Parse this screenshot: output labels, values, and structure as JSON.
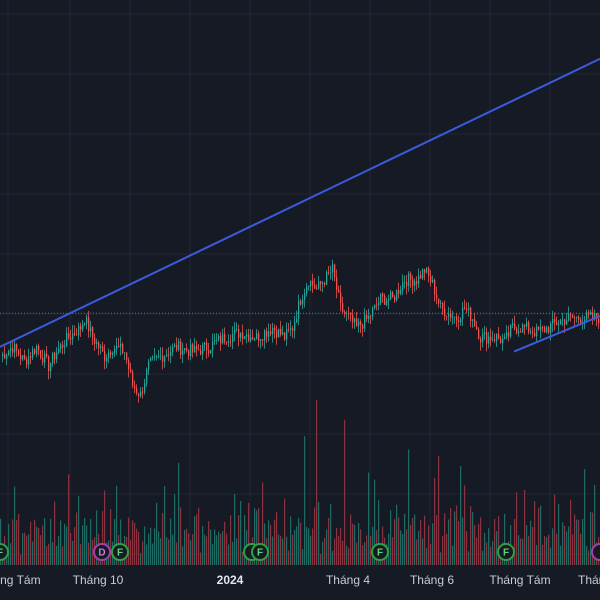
{
  "chart_data": {
    "type": "candlestick",
    "title": "",
    "xlabel": "",
    "ylabel": "",
    "grid": true,
    "colors": {
      "background": "#161a25",
      "grid": "#232734",
      "up": "#26a69a",
      "down": "#ef5350",
      "volume_up": "#1f6b64",
      "volume_down": "#8a3340",
      "trendline": "#3b5bdb",
      "reference_line": "#3d8a85",
      "dividend_marker": "#a33fa8",
      "earnings_marker": "#2ea043",
      "label": "#c9ccd4"
    },
    "x_tick_labels": [
      {
        "text": "Tháng Tám",
        "bold": false
      },
      {
        "text": "Tháng 10",
        "bold": false
      },
      {
        "text": "2024",
        "bold": true
      },
      {
        "text": "Tháng 4",
        "bold": false
      },
      {
        "text": "Tháng 6",
        "bold": false
      },
      {
        "text": "Tháng Tám",
        "bold": false
      },
      {
        "text": "Tháng",
        "bold": false
      }
    ],
    "price_range": [
      75,
      130
    ],
    "reference_level": 100.5,
    "anchor_closes": [
      [
        0,
        96
      ],
      [
        6,
        97
      ],
      [
        12,
        95.5
      ],
      [
        18,
        97
      ],
      [
        24,
        95
      ],
      [
        28,
        96.5
      ],
      [
        34,
        98
      ],
      [
        40,
        99
      ],
      [
        42,
        100
      ],
      [
        46,
        98
      ],
      [
        52,
        96
      ],
      [
        56,
        97
      ],
      [
        62,
        96.5
      ],
      [
        66,
        93
      ],
      [
        70,
        92
      ],
      [
        74,
        95
      ],
      [
        80,
        96
      ],
      [
        88,
        97
      ],
      [
        96,
        96.5
      ],
      [
        104,
        97
      ],
      [
        112,
        98
      ],
      [
        120,
        98.5
      ],
      [
        128,
        98
      ],
      [
        136,
        99
      ],
      [
        142,
        98
      ],
      [
        146,
        99
      ],
      [
        150,
        102
      ],
      [
        154,
        104
      ],
      [
        158,
        103
      ],
      [
        162,
        104
      ],
      [
        166,
        105
      ],
      [
        170,
        101
      ],
      [
        174,
        100
      ],
      [
        178,
        99
      ],
      [
        184,
        100
      ],
      [
        190,
        102
      ],
      [
        196,
        102
      ],
      [
        202,
        104
      ],
      [
        208,
        104
      ],
      [
        212,
        105
      ],
      [
        216,
        103.5
      ],
      [
        220,
        101
      ],
      [
        224,
        100.5
      ],
      [
        228,
        100
      ],
      [
        232,
        101
      ],
      [
        236,
        100
      ],
      [
        240,
        98
      ],
      [
        244,
        98
      ],
      [
        248,
        98
      ],
      [
        252,
        97.5
      ],
      [
        256,
        99
      ],
      [
        262,
        99
      ],
      [
        268,
        98.5
      ],
      [
        274,
        99
      ],
      [
        278,
        99.5
      ],
      [
        284,
        100
      ]
    ],
    "volume_pattern": [
      0.32,
      0.12,
      0.22,
      0.17,
      0.28,
      0.15,
      0.2,
      0.38,
      0.25,
      0.3,
      0.1,
      0.2,
      0.27,
      0.18,
      0.22,
      0.33,
      0.14,
      0.26,
      0.3,
      0.21,
      0.16,
      0.24,
      0.42,
      0.19,
      0.13,
      0.29,
      0.23,
      0.35,
      0.17,
      0.26
    ],
    "volume_spikes": [
      {
        "bar": 34,
        "value": 0.55
      },
      {
        "bar": 58,
        "value": 0.48
      },
      {
        "bar": 89,
        "value": 0.62
      },
      {
        "bar": 131,
        "value": 0.5
      },
      {
        "bar": 152,
        "value": 0.78
      },
      {
        "bar": 158,
        "value": 1.0
      },
      {
        "bar": 172,
        "value": 0.88
      },
      {
        "bar": 184,
        "value": 0.56
      },
      {
        "bar": 204,
        "value": 0.7
      },
      {
        "bar": 219,
        "value": 0.66
      },
      {
        "bar": 230,
        "value": 0.6
      },
      {
        "bar": 258,
        "value": 0.44
      },
      {
        "bar": 270,
        "value": 0.36
      }
    ],
    "trendlines": [
      {
        "from_bar": 0,
        "from_price": 97,
        "to_bar": 300,
        "to_price": 127
      },
      {
        "from_bar": 257,
        "from_price": 96.5,
        "to_bar": 300,
        "to_price": 100.2
      }
    ],
    "event_markers": [
      {
        "label": "F",
        "kind": "earnings",
        "bar": 0
      },
      {
        "label": "D",
        "kind": "dividend",
        "bar": 51
      },
      {
        "label": "F",
        "kind": "earnings",
        "bar": 60
      },
      {
        "label": "",
        "kind": "earnings",
        "bar": 126
      },
      {
        "label": "F",
        "kind": "earnings",
        "bar": 130
      },
      {
        "label": "F",
        "kind": "earnings",
        "bar": 190
      },
      {
        "label": "F",
        "kind": "earnings",
        "bar": 253
      },
      {
        "label": "",
        "kind": "dividend",
        "bar": 300
      }
    ],
    "x_tick_positions_bar": [
      5,
      49,
      115,
      174,
      216,
      260,
      298
    ]
  }
}
